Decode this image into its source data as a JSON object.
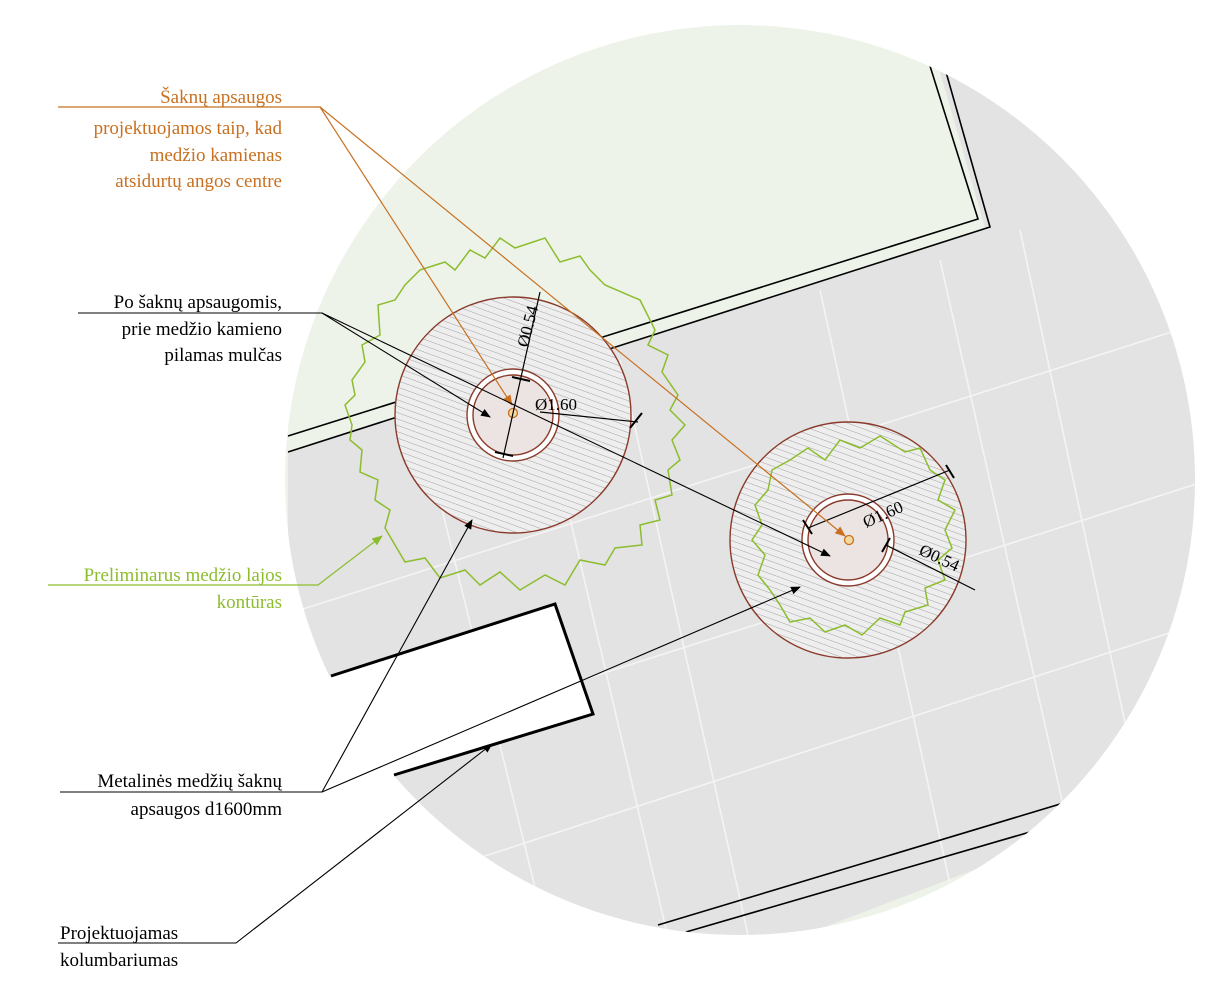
{
  "colors": {
    "orange": "#c87020",
    "green": "#8cbd2e",
    "black": "#000000",
    "root_guard": "#8a3a2a",
    "pavement": "#e3e3e3",
    "lawn": "#eef3ea"
  },
  "annotations": {
    "root_guard_note": [
      "Šaknų apsaugos",
      "projektuojamos taip, kad",
      "medžio kamienas",
      "atsidurtų angos centre"
    ],
    "mulch_note": [
      "Po šaknų apsaugomis,",
      "prie medžio kamieno",
      "pilamas mulčas"
    ],
    "crown_note": [
      "Preliminarus medžio lajos",
      "kontūras"
    ],
    "metal_note": [
      "Metalinės medžių šaknų",
      "apsaugos d1600mm"
    ],
    "columbarium_note": [
      "Projektuojamas",
      "kolumbariumas"
    ]
  },
  "trees": [
    {
      "name": "tree-1",
      "dim_inner": "Ø0.54",
      "dim_outer": "Ø1.60"
    },
    {
      "name": "tree-2",
      "dim_inner": "Ø0.54",
      "dim_outer": "Ø1.60"
    }
  ]
}
